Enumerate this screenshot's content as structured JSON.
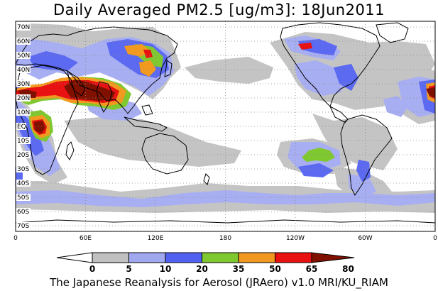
{
  "title": "Daily Averaged PM2.5 [ug/m3]: 18Jun2011",
  "footer": "The Japanese Reanalysis for Aerosol (JRAero) v1.0 MRI/KU_RIAM",
  "lat_ticks": [
    "70N",
    "60N",
    "50N",
    "40N",
    "30N",
    "20N",
    "10N",
    "EQ",
    "10S",
    "20S",
    "30S",
    "40S",
    "50S",
    "60S",
    "70S"
  ],
  "lon_ticks": [
    "0",
    "60E",
    "120E",
    "180",
    "120W",
    "60W",
    "0"
  ],
  "colorbar": {
    "levels": [
      "0",
      "5",
      "10",
      "20",
      "35",
      "50",
      "65",
      "80"
    ],
    "colors": [
      "#ffffff",
      "#c0c0c0",
      "#a0a8f0",
      "#5060f0",
      "#80c830",
      "#f09820",
      "#e81010",
      "#801000"
    ]
  }
}
